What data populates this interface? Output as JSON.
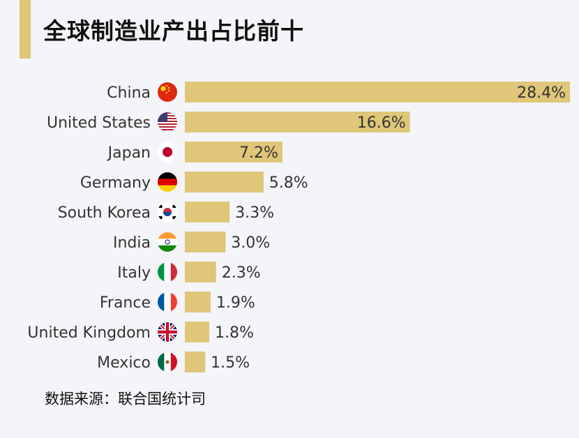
{
  "title": "全球制造业产出占比前十",
  "source": "数据来源：联合国统计司",
  "colors": {
    "bar": "#dfc678",
    "accent": "#dfc678",
    "background": "#f4f5f9",
    "text": "#333333"
  },
  "chart_data": {
    "type": "bar",
    "orientation": "horizontal",
    "title": "全球制造业产出占比前十",
    "xlim": [
      0,
      28.4
    ],
    "grid": false,
    "categories": [
      "China",
      "United States",
      "Japan",
      "Germany",
      "South Korea",
      "India",
      "Italy",
      "France",
      "United Kingdom",
      "Mexico"
    ],
    "values": [
      28.4,
      16.6,
      7.2,
      5.8,
      3.3,
      3.0,
      2.3,
      1.9,
      1.8,
      1.5
    ],
    "data_labels": [
      "28.4%",
      "16.6%",
      "7.2%",
      "5.8%",
      "3.3%",
      "3.0%",
      "2.3%",
      "1.9%",
      "1.8%",
      "1.5%"
    ],
    "flag_icons": [
      "china-flag-icon",
      "usa-flag-icon",
      "japan-flag-icon",
      "germany-flag-icon",
      "south-korea-flag-icon",
      "india-flag-icon",
      "italy-flag-icon",
      "france-flag-icon",
      "uk-flag-icon",
      "mexico-flag-icon"
    ]
  }
}
